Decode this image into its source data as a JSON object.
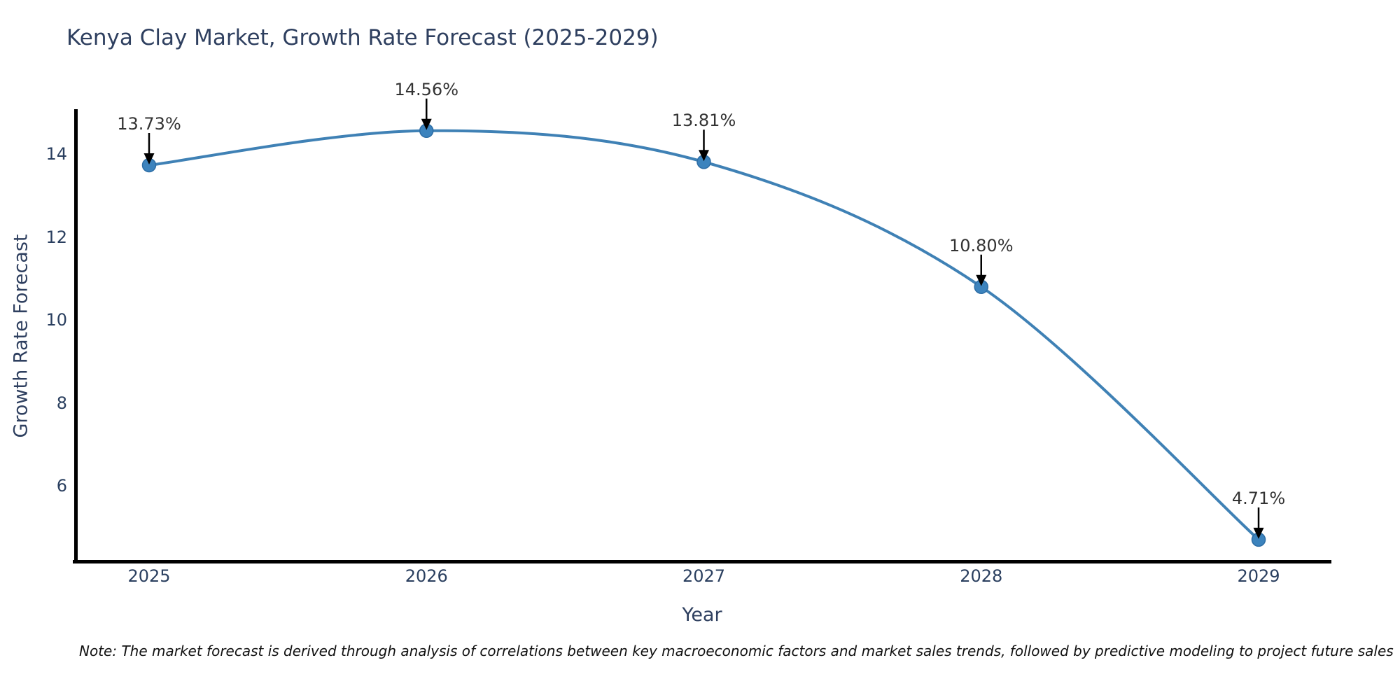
{
  "chart_data": {
    "type": "line",
    "title": "Kenya Clay Market, Growth Rate Forecast (2025-2029)",
    "xlabel": "Year",
    "ylabel": "Growth Rate Forecast",
    "x": [
      2025,
      2026,
      2027,
      2028,
      2029
    ],
    "series": [
      {
        "name": "Growth Rate Forecast",
        "values": [
          13.73,
          14.56,
          13.81,
          10.8,
          4.71
        ]
      }
    ],
    "point_labels": [
      "13.73%",
      "14.56%",
      "13.81%",
      "10.80%",
      "4.71%"
    ],
    "xticks": [
      "2025",
      "2026",
      "2027",
      "2028",
      "2029"
    ],
    "yticks": [
      6,
      8,
      10,
      12,
      14
    ],
    "ylim": [
      4.14,
      15.05
    ],
    "grid": false,
    "legend_visible": false,
    "curve_style": "smooth-spline",
    "colors": {
      "line": "#3f81b5",
      "marker_fill": "#3c83bd",
      "marker_edge": "#2d6da5",
      "annotation_text": "#333333",
      "annotation_arrow": "#000000",
      "axis_spine": "#000000",
      "title_text": "#2e3f5f",
      "tick_text": "#2a3f5f"
    },
    "note": "Note: The market forecast is derived through analysis of correlations between key macroeconomic factors and market sales trends, followed by predictive modeling to project future sales"
  }
}
